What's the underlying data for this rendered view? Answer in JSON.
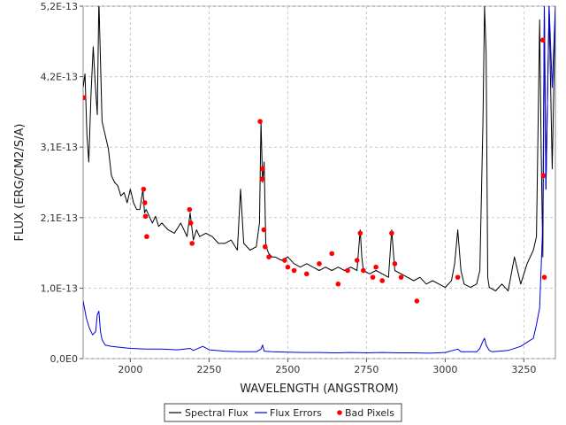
{
  "chart_data": {
    "type": "line",
    "title": "",
    "xlabel": "WAVELENGTH (ANGSTROM)",
    "ylabel": "FLUX (ERG/CM2/S/A)",
    "xlim": [
      1850,
      3350
    ],
    "ylim": [
      0,
      5.2e-13
    ],
    "grid": true,
    "legend_position": "bottom-center",
    "x_ticks": [
      {
        "value": 2000,
        "label": "2000"
      },
      {
        "value": 2250,
        "label": "2250"
      },
      {
        "value": 2500,
        "label": "2500"
      },
      {
        "value": 2750,
        "label": "2750"
      },
      {
        "value": 3000,
        "label": "3000"
      },
      {
        "value": 3250,
        "label": "3250"
      }
    ],
    "y_ticks": [
      {
        "value": 0,
        "label": "0,0E0"
      },
      {
        "value": 1.04e-13,
        "label": "1,0E-13"
      },
      {
        "value": 2.08e-13,
        "label": "2,1E-13"
      },
      {
        "value": 3.12e-13,
        "label": "3,1E-13"
      },
      {
        "value": 4.16e-13,
        "label": "4,2E-13"
      },
      {
        "value": 5.2e-13,
        "label": "5,2E-13"
      }
    ],
    "series": [
      {
        "name": "Spectral Flux",
        "color": "#000000",
        "x": [
          1850,
          1856,
          1862,
          1868,
          1875,
          1882,
          1888,
          1895,
          1900,
          1910,
          1920,
          1930,
          1940,
          1950,
          1960,
          1970,
          1980,
          1990,
          2000,
          2010,
          2020,
          2030,
          2040,
          2045,
          2050,
          2060,
          2070,
          2080,
          2090,
          2100,
          2120,
          2140,
          2160,
          2180,
          2190,
          2200,
          2210,
          2220,
          2240,
          2260,
          2280,
          2300,
          2320,
          2340,
          2350,
          2360,
          2380,
          2400,
          2410,
          2415,
          2420,
          2425,
          2430,
          2435,
          2440,
          2450,
          2460,
          2480,
          2500,
          2520,
          2540,
          2560,
          2580,
          2600,
          2620,
          2640,
          2660,
          2680,
          2700,
          2720,
          2730,
          2735,
          2740,
          2760,
          2780,
          2800,
          2820,
          2830,
          2840,
          2860,
          2880,
          2900,
          2920,
          2940,
          2960,
          2980,
          3000,
          3020,
          3030,
          3040,
          3050,
          3060,
          3080,
          3100,
          3110,
          3120,
          3125,
          3130,
          3135,
          3140,
          3160,
          3180,
          3200,
          3220,
          3240,
          3260,
          3280,
          3290,
          3300,
          3305,
          3310,
          3315,
          3320,
          3330,
          3340,
          3350
        ],
        "y": [
          4e-13,
          4.2e-13,
          3.3e-13,
          2.9e-13,
          3.9e-13,
          4.6e-13,
          4.1e-13,
          3.6e-13,
          5.3e-13,
          3.5e-13,
          3.3e-13,
          3.1e-13,
          2.7e-13,
          2.6e-13,
          2.55e-13,
          2.4e-13,
          2.45e-13,
          2.3e-13,
          2.5e-13,
          2.3e-13,
          2.2e-13,
          2.2e-13,
          2.5e-13,
          2.15e-13,
          2.2e-13,
          2.1e-13,
          2e-13,
          2.1e-13,
          1.95e-13,
          2e-13,
          1.9e-13,
          1.85e-13,
          2e-13,
          1.8e-13,
          2.15e-13,
          1.75e-13,
          1.9e-13,
          1.8e-13,
          1.85e-13,
          1.8e-13,
          1.7e-13,
          1.7e-13,
          1.75e-13,
          1.6e-13,
          2.5e-13,
          1.7e-13,
          1.6e-13,
          1.65e-13,
          2e-13,
          3.5e-13,
          2.6e-13,
          2.9e-13,
          1.7e-13,
          1.6e-13,
          1.55e-13,
          1.5e-13,
          1.5e-13,
          1.45e-13,
          1.5e-13,
          1.4e-13,
          1.35e-13,
          1.4e-13,
          1.35e-13,
          1.3e-13,
          1.35e-13,
          1.3e-13,
          1.35e-13,
          1.3e-13,
          1.35e-13,
          1.3e-13,
          1.9e-13,
          1.5e-13,
          1.3e-13,
          1.25e-13,
          1.3e-13,
          1.25e-13,
          1.2e-13,
          1.9e-13,
          1.3e-13,
          1.25e-13,
          1.2e-13,
          1.15e-13,
          1.2e-13,
          1.1e-13,
          1.15e-13,
          1.1e-13,
          1.05e-13,
          1.15e-13,
          1.4e-13,
          1.9e-13,
          1.3e-13,
          1.1e-13,
          1.05e-13,
          1.1e-13,
          1.3e-13,
          3.5e-13,
          5.2e-13,
          4.5e-13,
          1.2e-13,
          1.05e-13,
          1e-13,
          1.1e-13,
          1e-13,
          1.5e-13,
          1.1e-13,
          1.4e-13,
          1.6e-13,
          1.8e-13,
          5e-13,
          3e-13,
          1.5e-13,
          5.2e-13,
          2.5e-13,
          5.2e-13,
          2.8e-13,
          5.2e-13
        ]
      },
      {
        "name": "Flux Errors",
        "color": "#0000dd",
        "x": [
          1850,
          1860,
          1870,
          1880,
          1890,
          1895,
          1900,
          1905,
          1910,
          1920,
          1940,
          1960,
          1980,
          2000,
          2050,
          2100,
          2150,
          2190,
          2200,
          2230,
          2250,
          2300,
          2350,
          2400,
          2415,
          2420,
          2425,
          2450,
          2500,
          2550,
          2600,
          2650,
          2700,
          2750,
          2800,
          2850,
          2900,
          2950,
          3000,
          3040,
          3050,
          3100,
          3110,
          3120,
          3125,
          3130,
          3140,
          3150,
          3200,
          3240,
          3260,
          3280,
          3290,
          3300,
          3310,
          3315,
          3320,
          3330,
          3340,
          3350
        ],
        "y": [
          8.5e-14,
          6e-14,
          4.5e-14,
          3.5e-14,
          4e-14,
          6.5e-14,
          7e-14,
          4e-14,
          2.8e-14,
          2e-14,
          1.8e-14,
          1.7e-14,
          1.6e-14,
          1.5e-14,
          1.4e-14,
          1.4e-14,
          1.3e-14,
          1.5e-14,
          1.2e-14,
          1.8e-14,
          1.3e-14,
          1.1e-14,
          1e-14,
          1e-14,
          1.4e-14,
          2e-14,
          1.1e-14,
          1e-14,
          9.5e-15,
          9e-15,
          9e-15,
          8.5e-15,
          9e-15,
          8.5e-15,
          9e-15,
          8.5e-15,
          8.5e-15,
          8e-15,
          9e-15,
          1.4e-14,
          1e-14,
          1e-14,
          1.5e-14,
          2.6e-14,
          3e-14,
          2e-14,
          1.2e-14,
          1e-14,
          1.2e-14,
          1.8e-14,
          2.4e-14,
          3e-14,
          5e-14,
          7.5e-14,
          2e-13,
          5.2e-13,
          2.5e-13,
          5.2e-13,
          4e-13,
          5.2e-13
        ]
      },
      {
        "name": "Bad Pixels",
        "color": "#ff0000",
        "marker": "point",
        "x": [
          1852,
          2042,
          2046,
          2048,
          2052,
          2188,
          2192,
          2196,
          2412,
          2418,
          2420,
          2424,
          2428,
          2440,
          2490,
          2500,
          2520,
          2560,
          2600,
          2640,
          2660,
          2690,
          2720,
          2730,
          2740,
          2770,
          2780,
          2800,
          2830,
          2840,
          2860,
          2910,
          3040,
          3310,
          3312,
          3315
        ],
        "y": [
          3.85e-13,
          2.5e-13,
          2.3e-13,
          2.1e-13,
          1.8e-13,
          2.2e-13,
          2e-13,
          1.7e-13,
          3.5e-13,
          2.65e-13,
          2.8e-13,
          1.9e-13,
          1.65e-13,
          1.5e-13,
          1.45e-13,
          1.35e-13,
          1.3e-13,
          1.25e-13,
          1.4e-13,
          1.55e-13,
          1.1e-13,
          1.3e-13,
          1.45e-13,
          1.85e-13,
          1.3e-13,
          1.2e-13,
          1.35e-13,
          1.15e-13,
          1.85e-13,
          1.4e-13,
          1.2e-13,
          8.5e-14,
          1.2e-13,
          4.7e-13,
          2.7e-13,
          1.2e-13
        ]
      }
    ],
    "legend": [
      {
        "label": "Spectral Flux",
        "symbol": "line",
        "color": "#000000"
      },
      {
        "label": "Flux Errors",
        "symbol": "line",
        "color": "#0000dd"
      },
      {
        "label": "Bad Pixels",
        "symbol": "dot",
        "color": "#ff0000"
      }
    ]
  }
}
